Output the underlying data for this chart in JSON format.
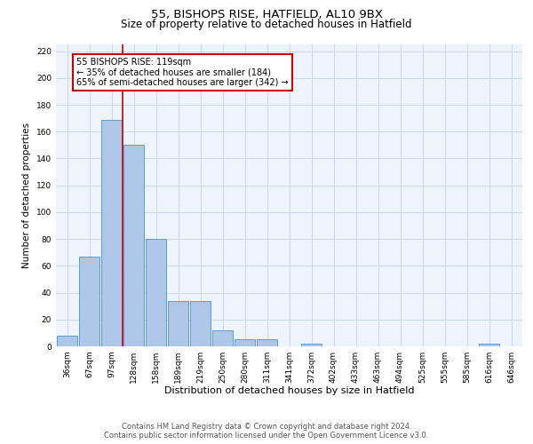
{
  "title1": "55, BISHOPS RISE, HATFIELD, AL10 9BX",
  "title2": "Size of property relative to detached houses in Hatfield",
  "xlabel": "Distribution of detached houses by size in Hatfield",
  "ylabel": "Number of detached properties",
  "categories": [
    "36sqm",
    "67sqm",
    "97sqm",
    "128sqm",
    "158sqm",
    "189sqm",
    "219sqm",
    "250sqm",
    "280sqm",
    "311sqm",
    "341sqm",
    "372sqm",
    "402sqm",
    "433sqm",
    "463sqm",
    "494sqm",
    "525sqm",
    "555sqm",
    "585sqm",
    "616sqm",
    "646sqm"
  ],
  "values": [
    8,
    67,
    169,
    150,
    80,
    34,
    34,
    12,
    5,
    5,
    0,
    2,
    0,
    0,
    0,
    0,
    0,
    0,
    0,
    2,
    0
  ],
  "bar_color": "#aec6e8",
  "bar_edge_color": "#5b9bd5",
  "bar_edge_width": 0.7,
  "grid_color": "#c8d8e8",
  "background_color": "#eef4fb",
  "vline_color": "#cc0000",
  "annotation_text": "55 BISHOPS RISE: 119sqm\n← 35% of detached houses are smaller (184)\n65% of semi-detached houses are larger (342) →",
  "annotation_box_color": "#cc0000",
  "ylim": [
    0,
    225
  ],
  "yticks": [
    0,
    20,
    40,
    60,
    80,
    100,
    120,
    140,
    160,
    180,
    200,
    220
  ],
  "footer1": "Contains HM Land Registry data © Crown copyright and database right 2024.",
  "footer2": "Contains public sector information licensed under the Open Government Licence v3.0.",
  "title1_fontsize": 9.5,
  "title2_fontsize": 8.5,
  "xlabel_fontsize": 8,
  "ylabel_fontsize": 7.5,
  "tick_fontsize": 6.5,
  "footer_fontsize": 6,
  "annotation_fontsize": 7
}
